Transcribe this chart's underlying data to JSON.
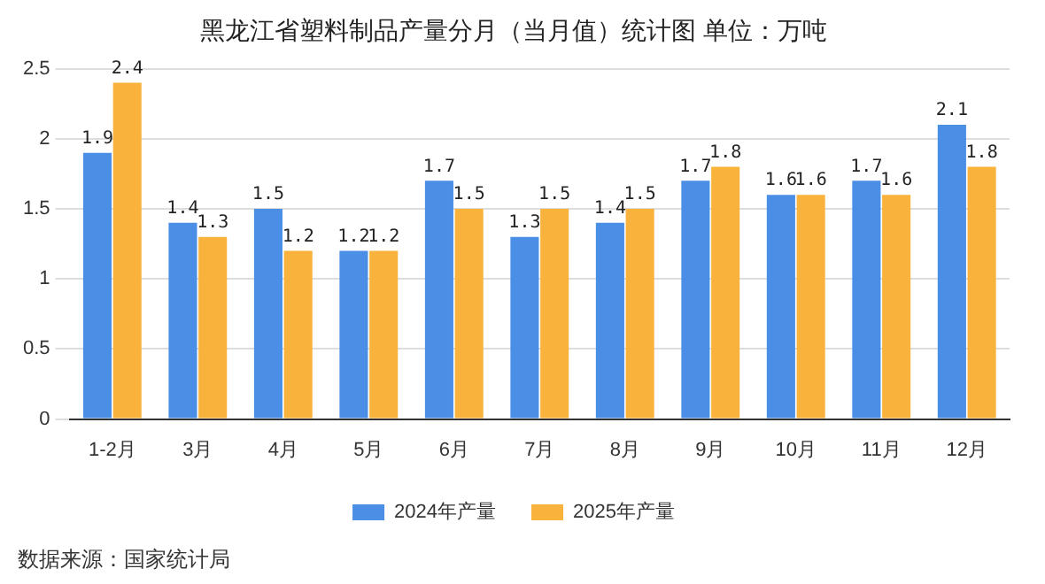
{
  "chart_data": {
    "type": "bar",
    "title": "黑龙江省塑料制品产量分月（当月值）统计图 单位：万吨",
    "categories": [
      "1-2月",
      "3月",
      "4月",
      "5月",
      "6月",
      "7月",
      "8月",
      "9月",
      "10月",
      "11月",
      "12月"
    ],
    "series": [
      {
        "name": "2024年产量",
        "color": "#4a8ee6",
        "values": [
          1.9,
          1.4,
          1.5,
          1.2,
          1.7,
          1.3,
          1.4,
          1.7,
          1.6,
          1.7,
          2.1
        ]
      },
      {
        "name": "2025年产量",
        "color": "#f9b23c",
        "values": [
          2.4,
          1.3,
          1.2,
          1.2,
          1.5,
          1.5,
          1.5,
          1.8,
          1.6,
          1.6,
          1.8
        ]
      }
    ],
    "ylim": [
      0,
      2.5
    ],
    "yticks": [
      0,
      0.5,
      1,
      1.5,
      2,
      2.5
    ],
    "grid": "y",
    "legend": "bottom",
    "data_labels": true,
    "annotations": [
      "数据来源：国家统计局"
    ]
  }
}
